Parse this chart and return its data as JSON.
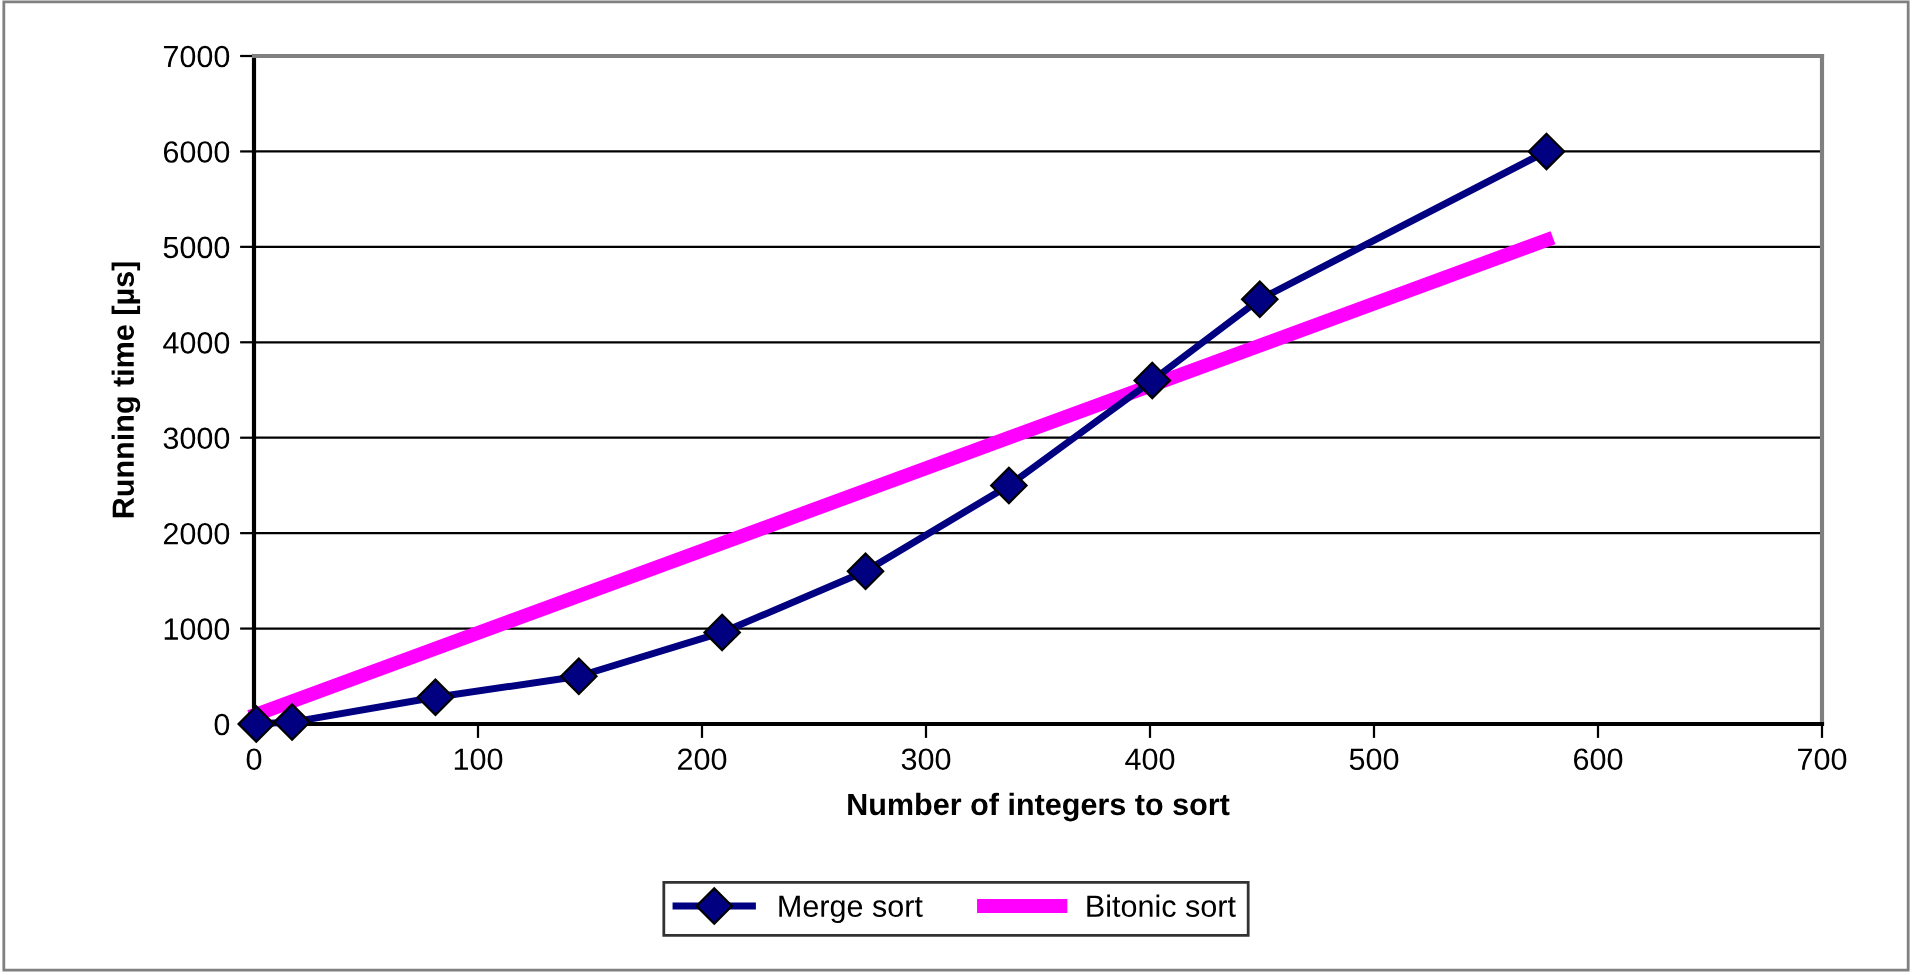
{
  "chart_data": {
    "type": "line",
    "xlabel": "Number of integers to sort",
    "ylabel": "Running time [µs]",
    "xlim": [
      0,
      700
    ],
    "xticks": [
      0,
      100,
      200,
      300,
      400,
      500,
      600,
      700
    ],
    "ylim": [
      0,
      7000
    ],
    "yticks": [
      0,
      1000,
      2000,
      3000,
      4000,
      5000,
      6000,
      7000
    ],
    "grid": "y",
    "legend": "bottom",
    "series": [
      {
        "name": "Merge sort",
        "color": "#000080",
        "marker": "diamond",
        "x": [
          1,
          17,
          81,
          145,
          209,
          273,
          337,
          401,
          449,
          577
        ],
        "values": [
          0,
          20,
          280,
          500,
          960,
          1600,
          2500,
          3600,
          4450,
          6000
        ]
      },
      {
        "name": "Bitonic sort",
        "color": "#ff00ff",
        "marker": "none",
        "x": [
          1,
          577
        ],
        "values": [
          100,
          5070
        ]
      }
    ]
  }
}
